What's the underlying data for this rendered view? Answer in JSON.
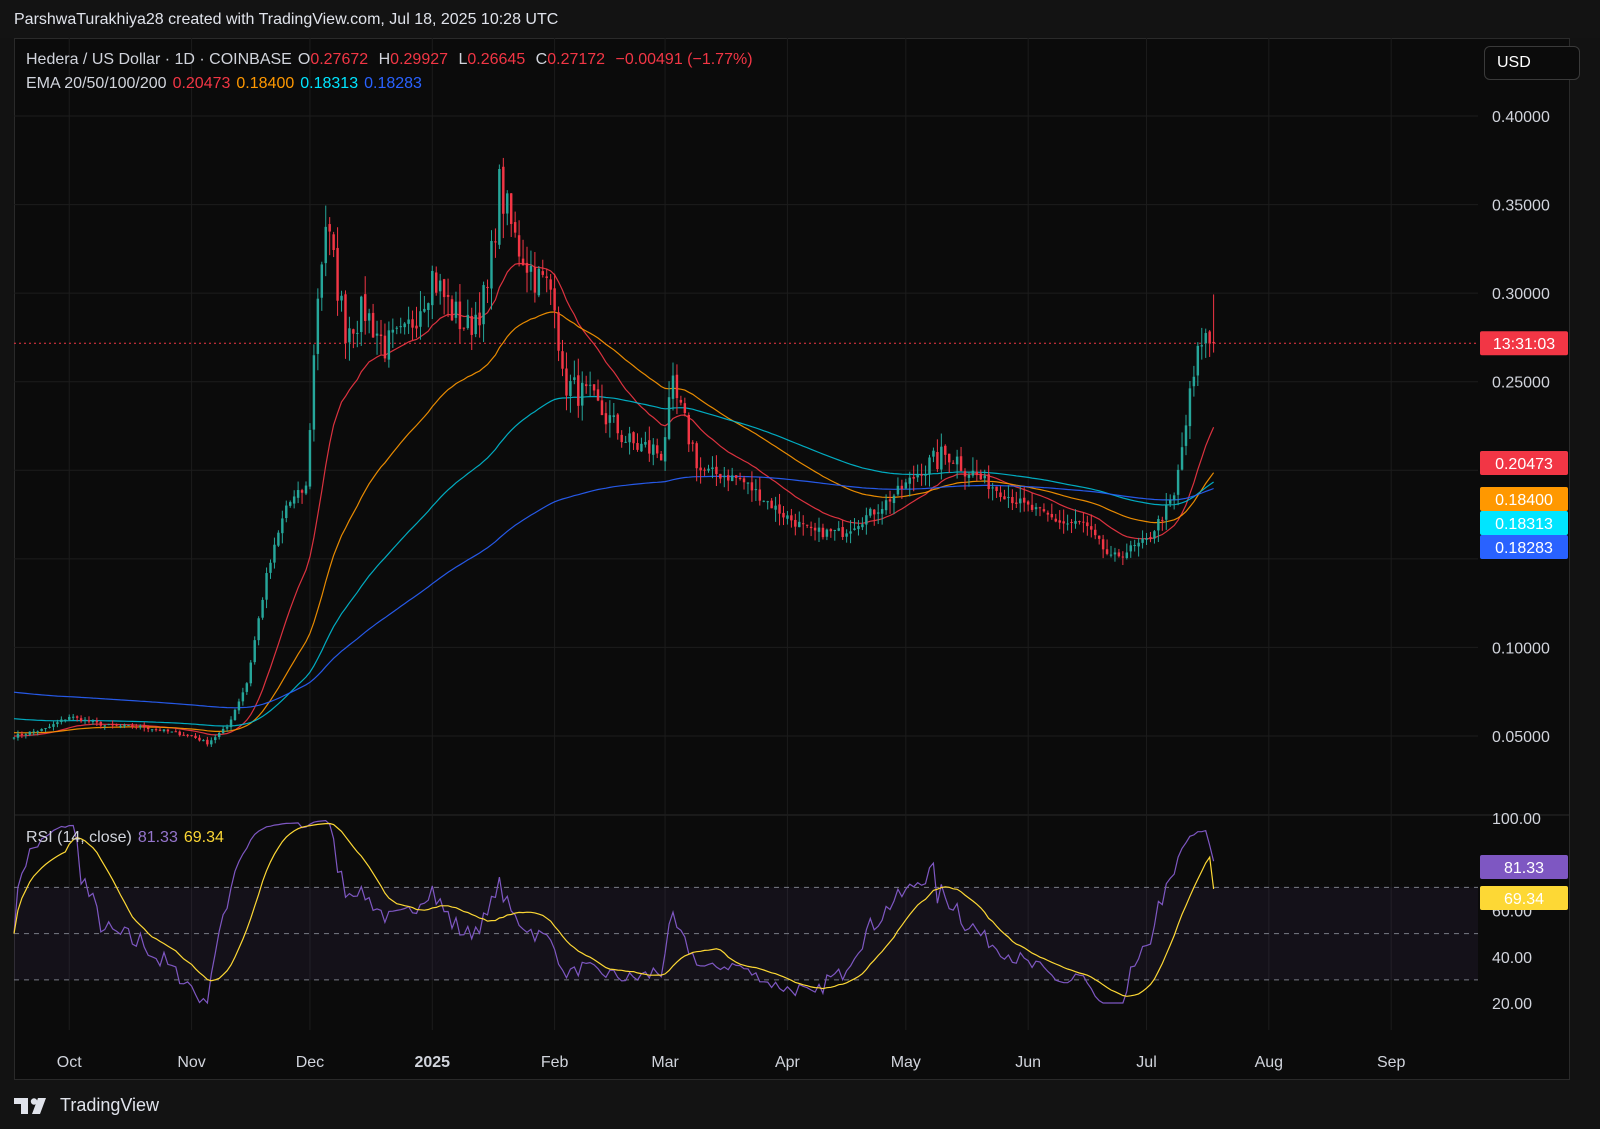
{
  "attribution": "ParshwaTurakhiya28 created with TradingView.com, Jul 18, 2025 10:28 UTC",
  "header": {
    "symbol": "Hedera / US Dollar · 1D · COINBASE",
    "open_label": "O",
    "open": "0.27672",
    "high_label": "H",
    "high": "0.29927",
    "low_label": "L",
    "low": "0.26645",
    "close_label": "C",
    "close": "0.27172",
    "change": "−0.00491 (−1.77%)",
    "ema_label": "EMA 20/50/100/200",
    "ema20": "0.20473",
    "ema50": "0.18400",
    "ema100": "0.18313",
    "ema200": "0.18283"
  },
  "currency_button": "USD",
  "countdown": "13:31:03",
  "rsi": {
    "label": "RSI (14, close)",
    "value": "81.33",
    "ma": "69.34"
  },
  "branding": "TradingView",
  "colors": {
    "up": "#26a69a",
    "down": "#f23645",
    "ema20": "#f23645",
    "ema50": "#ff9800",
    "ema100": "#00bcd4",
    "ema200": "#2962ff",
    "rsi": "#7e57c2",
    "rsi_ma": "#fdd835"
  },
  "chart_data": [
    {
      "type": "candlestick",
      "title": "Hedera / US Dollar · 1D · COINBASE",
      "ylim": [
        0.0,
        0.42
      ],
      "y_ticks": [
        "0.40000",
        "0.35000",
        "0.30000",
        "0.25000",
        "0.10000",
        "0.05000"
      ],
      "x_ticks": [
        "Oct",
        "Nov",
        "Dec",
        "2025",
        "Feb",
        "Mar",
        "Apr",
        "May",
        "Jun",
        "Jul",
        "Aug",
        "Sep"
      ],
      "x_range": [
        "2024-09-17",
        "2025-09-23"
      ],
      "price_line": 0.27172,
      "ohlc_keypoints": {
        "dates": [
          "2024-09-17",
          "2024-09-25",
          "2024-10-01",
          "2024-10-10",
          "2024-10-20",
          "2024-11-01",
          "2024-11-05",
          "2024-11-10",
          "2024-11-15",
          "2024-11-20",
          "2024-11-25",
          "2024-11-30",
          "2024-12-03",
          "2024-12-05",
          "2024-12-10",
          "2024-12-15",
          "2024-12-20",
          "2024-12-25",
          "2025-01-01",
          "2025-01-06",
          "2025-01-10",
          "2025-01-15",
          "2025-01-18",
          "2025-01-22",
          "2025-01-27",
          "2025-02-01",
          "2025-02-03",
          "2025-02-10",
          "2025-02-20",
          "2025-02-28",
          "2025-03-03",
          "2025-03-10",
          "2025-03-20",
          "2025-03-31",
          "2025-04-07",
          "2025-04-15",
          "2025-04-25",
          "2025-05-05",
          "2025-05-12",
          "2025-05-20",
          "2025-05-31",
          "2025-06-10",
          "2025-06-15",
          "2025-06-22",
          "2025-07-01",
          "2025-07-08",
          "2025-07-12",
          "2025-07-15",
          "2025-07-18"
        ],
        "close": [
          0.05,
          0.054,
          0.061,
          0.056,
          0.055,
          0.05,
          0.046,
          0.055,
          0.08,
          0.14,
          0.18,
          0.19,
          0.3,
          0.34,
          0.28,
          0.29,
          0.27,
          0.275,
          0.31,
          0.29,
          0.28,
          0.3,
          0.36,
          0.33,
          0.31,
          0.3,
          0.25,
          0.24,
          0.215,
          0.21,
          0.245,
          0.2,
          0.195,
          0.175,
          0.165,
          0.165,
          0.18,
          0.2,
          0.21,
          0.195,
          0.18,
          0.17,
          0.17,
          0.15,
          0.16,
          0.185,
          0.24,
          0.275,
          0.27172
        ]
      },
      "ema": {
        "names": [
          "EMA 20",
          "EMA 50",
          "EMA 100",
          "EMA 200"
        ],
        "last": [
          0.20473,
          0.184,
          0.18313,
          0.18283
        ]
      }
    },
    {
      "type": "line",
      "title": "RSI (14, close)",
      "ylim": [
        20,
        100
      ],
      "y_ticks": [
        "100.00",
        "60.00",
        "40.00",
        "20.00"
      ],
      "bands": [
        70,
        50,
        30
      ],
      "series": [
        {
          "name": "RSI",
          "last": 81.33
        },
        {
          "name": "RSI-based MA",
          "last": 69.34
        }
      ]
    }
  ]
}
